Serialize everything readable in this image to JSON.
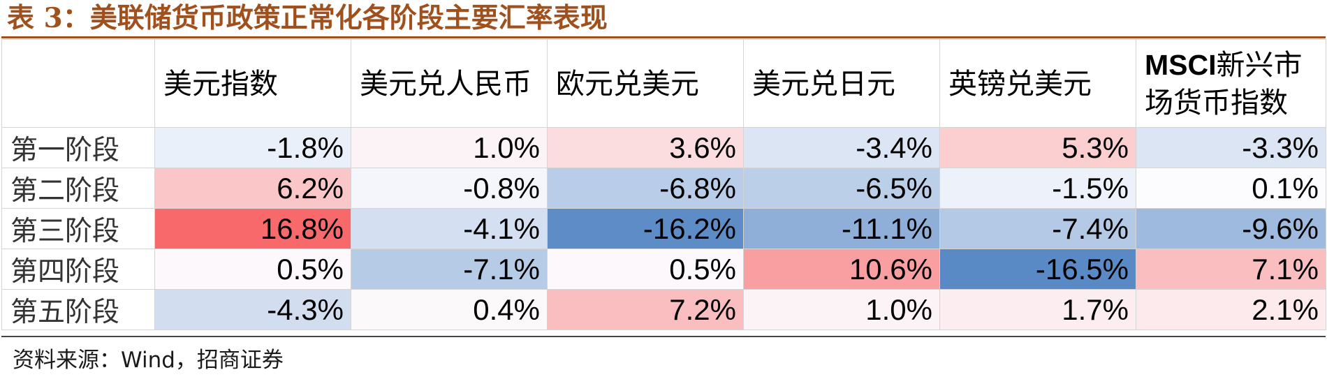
{
  "title": "表 3：美联储货币政策正常化各阶段主要汇率表现",
  "table": {
    "columns": [
      "美元指数",
      "美元兑人民币",
      "欧元兑美元",
      "美元兑日元",
      "英镑兑美元",
      "MSCI新兴市场货币指数"
    ],
    "rows": [
      {
        "label": "第一阶段",
        "cells": [
          {
            "text": "-1.8%",
            "value": -1.8
          },
          {
            "text": "1.0%",
            "value": 1.0
          },
          {
            "text": "3.6%",
            "value": 3.6
          },
          {
            "text": "-3.4%",
            "value": -3.4
          },
          {
            "text": "5.3%",
            "value": 5.3
          },
          {
            "text": "-3.3%",
            "value": -3.3
          }
        ]
      },
      {
        "label": "第二阶段",
        "cells": [
          {
            "text": "6.2%",
            "value": 6.2
          },
          {
            "text": "-0.8%",
            "value": -0.8
          },
          {
            "text": "-6.8%",
            "value": -6.8
          },
          {
            "text": "-6.5%",
            "value": -6.5
          },
          {
            "text": "-1.5%",
            "value": -1.5
          },
          {
            "text": "0.1%",
            "value": 0.1
          }
        ]
      },
      {
        "label": "第三阶段",
        "cells": [
          {
            "text": "16.8%",
            "value": 16.8
          },
          {
            "text": "-4.1%",
            "value": -4.1
          },
          {
            "text": "-16.2%",
            "value": -16.2
          },
          {
            "text": "-11.1%",
            "value": -11.1
          },
          {
            "text": "-7.4%",
            "value": -7.4
          },
          {
            "text": "-9.6%",
            "value": -9.6
          }
        ]
      },
      {
        "label": "第四阶段",
        "cells": [
          {
            "text": "0.5%",
            "value": 0.5
          },
          {
            "text": "-7.1%",
            "value": -7.1
          },
          {
            "text": "0.5%",
            "value": 0.5
          },
          {
            "text": "10.6%",
            "value": 10.6
          },
          {
            "text": "-16.5%",
            "value": -16.5
          },
          {
            "text": "7.1%",
            "value": 7.1
          }
        ]
      },
      {
        "label": "第五阶段",
        "cells": [
          {
            "text": "-4.3%",
            "value": -4.3
          },
          {
            "text": "0.4%",
            "value": 0.4
          },
          {
            "text": "7.2%",
            "value": 7.2
          },
          {
            "text": "1.0%",
            "value": 1.0
          },
          {
            "text": "1.7%",
            "value": 1.7
          },
          {
            "text": "2.1%",
            "value": 2.1
          }
        ]
      }
    ]
  },
  "colors": {
    "title": "#a0501c",
    "positive_max": "#f8696b",
    "negative_max": "#5a8ac6",
    "neutral": "#fcfcff"
  },
  "source": "资料来源：Wind，招商证券"
}
